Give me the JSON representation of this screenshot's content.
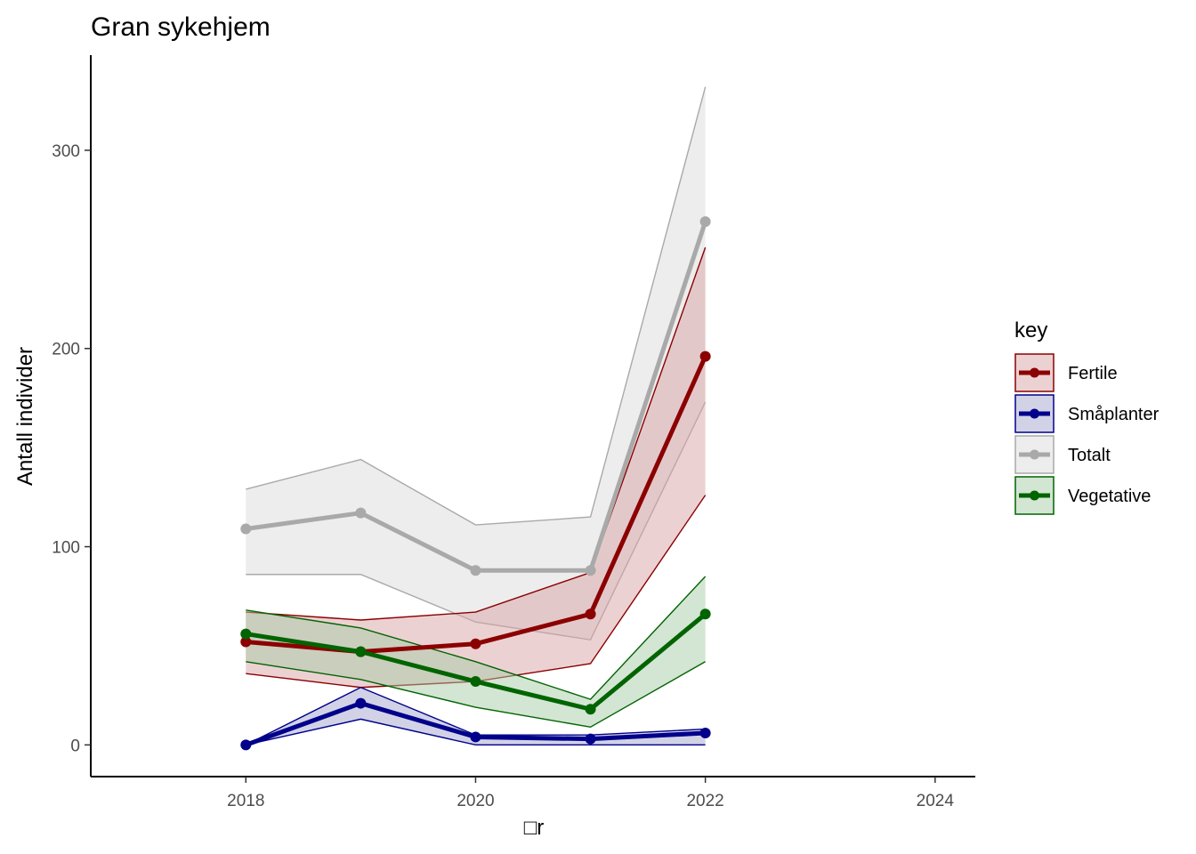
{
  "chart_data": {
    "type": "line",
    "title": "Gran sykehjem",
    "xlabel": "□r",
    "ylabel": "Antall individer",
    "xlim": [
      2016.65,
      2024.35
    ],
    "ylim": [
      -16,
      348
    ],
    "x_ticks": [
      2018,
      2020,
      2022,
      2024
    ],
    "y_ticks": [
      0,
      100,
      200,
      300
    ],
    "grid": false,
    "legend": {
      "title": "key",
      "placement": "right"
    },
    "x": [
      2018,
      2019,
      2020,
      2021,
      2022
    ],
    "series": [
      {
        "name": "Fertile",
        "color": "#8b0000",
        "fill": "#d9a3a7",
        "values": [
          52,
          47,
          51,
          66,
          196
        ],
        "lower": [
          36,
          29,
          32,
          41,
          126
        ],
        "upper": [
          67,
          63,
          67,
          87,
          251
        ]
      },
      {
        "name": "Småplanter",
        "color": "#00008b",
        "fill": "#a6a6cf",
        "values": [
          0,
          21,
          4,
          3,
          6
        ],
        "lower": [
          0,
          13,
          0,
          0,
          0
        ],
        "upper": [
          0,
          29,
          5,
          5,
          8
        ]
      },
      {
        "name": "Totalt",
        "color": "#a9a9a9",
        "fill": "#dcdcdc",
        "values": [
          109,
          117,
          88,
          88,
          264
        ],
        "lower": [
          86,
          86,
          62,
          53,
          173
        ],
        "upper": [
          129,
          144,
          111,
          115,
          332
        ]
      },
      {
        "name": "Vegetative",
        "color": "#006400",
        "fill": "#a8cca8",
        "values": [
          56,
          47,
          32,
          18,
          66
        ],
        "lower": [
          42,
          33,
          19,
          9,
          42
        ],
        "upper": [
          68,
          59,
          42,
          23,
          85
        ]
      }
    ],
    "draw_order": [
      "Totalt",
      "Fertile",
      "Vegetative",
      "Småplanter"
    ]
  }
}
